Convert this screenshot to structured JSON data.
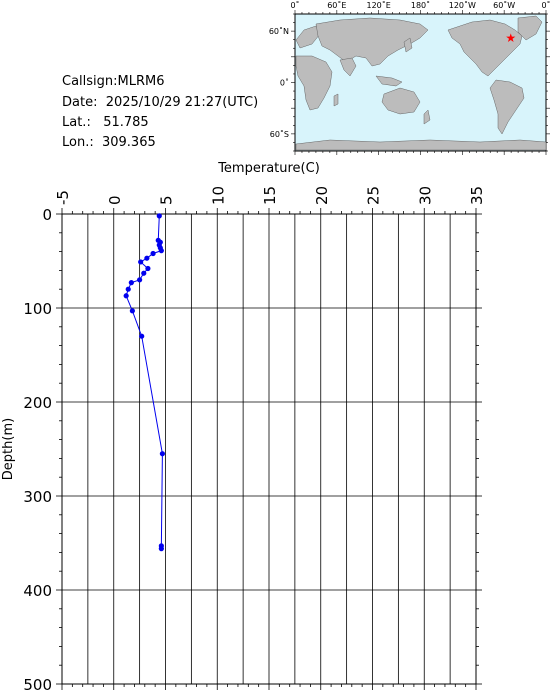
{
  "info": {
    "callsign": "Callsign:MLRM6",
    "date": "Date:  2025/10/29 21:27(UTC)",
    "lat": "Lat.:   51.785",
    "lon": "Lon.:  309.365"
  },
  "map": {
    "lon_labels": [
      "0˚",
      "60˚E",
      "120˚E",
      "180˚",
      "120˚W",
      "60˚W",
      "0˚"
    ],
    "lat_labels": [
      "60˚N",
      "0˚",
      "60˚S"
    ],
    "colors": {
      "ocean": "#d8f4fb",
      "land": "#bcbcbc",
      "marker": "#ff0000"
    },
    "marker_icon": "star-icon",
    "station": {
      "lat": 51.785,
      "lon": 309.365
    }
  },
  "chart_data": {
    "type": "line",
    "xlabel": "Temperature(C)",
    "ylabel": "Depth(m)",
    "xlim": [
      -5,
      35
    ],
    "ylim": [
      500,
      0
    ],
    "x_ticks": [
      -5,
      0,
      5,
      10,
      15,
      20,
      25,
      30,
      35
    ],
    "y_ticks": [
      0,
      100,
      200,
      300,
      400,
      500
    ],
    "grid": true,
    "series_color": "#0000ee",
    "points": [
      {
        "t": 4.4,
        "d": 2
      },
      {
        "t": 4.3,
        "d": 28
      },
      {
        "t": 4.5,
        "d": 30
      },
      {
        "t": 4.4,
        "d": 33
      },
      {
        "t": 4.5,
        "d": 36
      },
      {
        "t": 4.6,
        "d": 39
      },
      {
        "t": 3.8,
        "d": 42
      },
      {
        "t": 3.2,
        "d": 47
      },
      {
        "t": 2.6,
        "d": 51
      },
      {
        "t": 3.3,
        "d": 58
      },
      {
        "t": 2.9,
        "d": 63
      },
      {
        "t": 2.5,
        "d": 70
      },
      {
        "t": 1.7,
        "d": 73
      },
      {
        "t": 1.4,
        "d": 80
      },
      {
        "t": 1.2,
        "d": 87
      },
      {
        "t": 1.8,
        "d": 103
      },
      {
        "t": 2.7,
        "d": 130
      },
      {
        "t": 4.7,
        "d": 255
      },
      {
        "t": 4.6,
        "d": 353
      },
      {
        "t": 4.6,
        "d": 356
      }
    ]
  }
}
